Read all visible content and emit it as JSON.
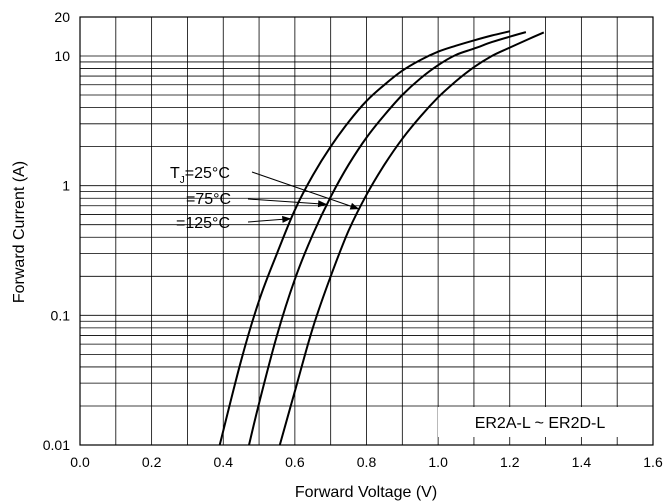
{
  "chart_data": {
    "type": "line",
    "title": "",
    "xlabel": "Forward Voltage (V)",
    "ylabel": "Forward Current (A)",
    "xlim": [
      0.0,
      1.6
    ],
    "ylim": [
      0.01,
      20
    ],
    "yscale": "log",
    "grid": true,
    "x_ticks": [
      "0.0",
      "0.2",
      "0.4",
      "0.6",
      "0.8",
      "1.0",
      "1.2",
      "1.4",
      "1.6"
    ],
    "y_ticks": [
      "0.01",
      "0.1",
      "1",
      "10",
      "20"
    ],
    "series": [
      {
        "name": "TJ=25°C",
        "points": [
          [
            0.558,
            0.01
          ],
          [
            0.6,
            0.026
          ],
          [
            0.65,
            0.08
          ],
          [
            0.7,
            0.2
          ],
          [
            0.75,
            0.45
          ],
          [
            0.8,
            0.85
          ],
          [
            0.85,
            1.45
          ],
          [
            0.9,
            2.3
          ],
          [
            0.95,
            3.4
          ],
          [
            1.0,
            4.8
          ],
          [
            1.05,
            6.4
          ],
          [
            1.1,
            8.2
          ],
          [
            1.15,
            10.0
          ],
          [
            1.2,
            11.6
          ],
          [
            1.25,
            13.4
          ],
          [
            1.295,
            15.2
          ]
        ]
      },
      {
        "name": "=75°C",
        "points": [
          [
            0.472,
            0.01
          ],
          [
            0.5,
            0.021
          ],
          [
            0.55,
            0.07
          ],
          [
            0.6,
            0.19
          ],
          [
            0.65,
            0.42
          ],
          [
            0.7,
            0.82
          ],
          [
            0.75,
            1.45
          ],
          [
            0.8,
            2.35
          ],
          [
            0.85,
            3.5
          ],
          [
            0.9,
            5.0
          ],
          [
            0.95,
            6.7
          ],
          [
            1.0,
            8.5
          ],
          [
            1.05,
            10.2
          ],
          [
            1.1,
            11.4
          ],
          [
            1.15,
            12.8
          ],
          [
            1.2,
            14.1
          ],
          [
            1.245,
            15.3
          ]
        ]
      },
      {
        "name": "=125°C",
        "points": [
          [
            0.39,
            0.01
          ],
          [
            0.45,
            0.045
          ],
          [
            0.5,
            0.13
          ],
          [
            0.55,
            0.3
          ],
          [
            0.6,
            0.65
          ],
          [
            0.65,
            1.2
          ],
          [
            0.7,
            2.0
          ],
          [
            0.75,
            3.1
          ],
          [
            0.8,
            4.5
          ],
          [
            0.85,
            6.0
          ],
          [
            0.9,
            7.7
          ],
          [
            0.95,
            9.3
          ],
          [
            1.0,
            10.8
          ],
          [
            1.05,
            12.0
          ],
          [
            1.1,
            13.2
          ],
          [
            1.15,
            14.4
          ],
          [
            1.2,
            15.5
          ]
        ]
      }
    ],
    "annotations": [
      {
        "text": "T",
        "sub": "J",
        "rest": "=25°C",
        "series": 0
      },
      {
        "text": "=75°C",
        "series": 1
      },
      {
        "text": "=125°C",
        "series": 2
      }
    ],
    "label_box": "ER2A-L ~ ER2D-L"
  }
}
